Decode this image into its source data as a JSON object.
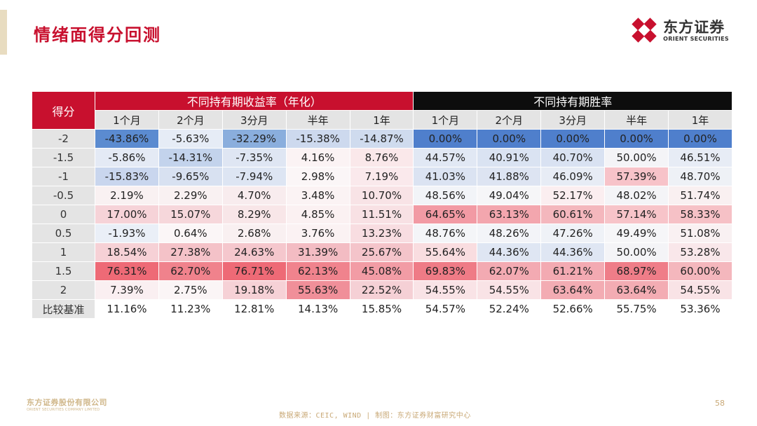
{
  "title": "情绪面得分回测",
  "logo": {
    "cn": "东方证券",
    "en": "ORIENT SECURITIES"
  },
  "table": {
    "score_header": "得分",
    "group_return": "不同持有期收益率（年化）",
    "group_winrate": "不同持有期胜率",
    "return_periods": [
      "1个月",
      "2个月",
      "3分月",
      "半年",
      "1年"
    ],
    "winrate_periods": [
      "1个月",
      "2个月",
      "3分月",
      "半年",
      "1年"
    ],
    "rows": [
      {
        "score": "-2",
        "values": [
          "-43.86%",
          "-5.63%",
          "-32.29%",
          "-15.38%",
          "-14.87%",
          "0.00%",
          "0.00%",
          "0.00%",
          "0.00%",
          "0.00%"
        ]
      },
      {
        "score": "-1.5",
        "values": [
          "-5.86%",
          "-14.31%",
          "-7.35%",
          "4.16%",
          "8.76%",
          "44.57%",
          "40.91%",
          "40.70%",
          "50.00%",
          "46.51%"
        ]
      },
      {
        "score": "-1",
        "values": [
          "-15.83%",
          "-9.65%",
          "-7.94%",
          "2.98%",
          "7.19%",
          "41.03%",
          "41.88%",
          "46.09%",
          "57.39%",
          "48.70%"
        ]
      },
      {
        "score": "-0.5",
        "values": [
          "2.19%",
          "2.29%",
          "4.70%",
          "3.48%",
          "10.70%",
          "48.56%",
          "49.04%",
          "52.17%",
          "48.02%",
          "51.74%"
        ]
      },
      {
        "score": "0",
        "values": [
          "17.00%",
          "15.07%",
          "8.29%",
          "4.85%",
          "11.51%",
          "64.65%",
          "63.13%",
          "60.61%",
          "57.14%",
          "58.33%"
        ]
      },
      {
        "score": "0.5",
        "values": [
          "-1.93%",
          "0.64%",
          "2.68%",
          "3.76%",
          "13.23%",
          "48.76%",
          "48.26%",
          "47.26%",
          "49.49%",
          "51.08%"
        ]
      },
      {
        "score": "1",
        "values": [
          "18.54%",
          "27.38%",
          "24.63%",
          "31.39%",
          "25.67%",
          "55.64%",
          "44.36%",
          "44.36%",
          "50.00%",
          "53.28%"
        ]
      },
      {
        "score": "1.5",
        "values": [
          "76.31%",
          "62.70%",
          "76.71%",
          "62.13%",
          "45.08%",
          "69.83%",
          "62.07%",
          "61.21%",
          "68.97%",
          "60.00%"
        ]
      },
      {
        "score": "2",
        "values": [
          "7.39%",
          "2.75%",
          "19.18%",
          "55.63%",
          "22.52%",
          "54.55%",
          "54.55%",
          "63.64%",
          "63.64%",
          "54.55%"
        ]
      },
      {
        "score": "比较基准",
        "values": [
          "11.16%",
          "11.23%",
          "12.81%",
          "14.13%",
          "15.85%",
          "54.57%",
          "52.24%",
          "52.66%",
          "55.75%",
          "53.36%"
        ]
      }
    ],
    "cell_colors": [
      [
        "#5b8bd0",
        "#e6ecf6",
        "#8aaedd",
        "#cdd9ee",
        "#cfdbee",
        "#4f7fcc",
        "#4f7fcc",
        "#4f7fcc",
        "#4f7fcc",
        "#4f7fcc"
      ],
      [
        "#e4eaf5",
        "#c3d3ec",
        "#dfe6f3",
        "#fbf3f4",
        "#fae8ea",
        "#e1e8f4",
        "#dae3f2",
        "#d9e2f2",
        "#f4f4f7",
        "#e7ecf5"
      ],
      [
        "#c9d6ee",
        "#d8e1f1",
        "#dde5f3",
        "#fbf6f7",
        "#fae9ec",
        "#dbe3f2",
        "#dde4f2",
        "#e7ecf5",
        "#f7c3c9",
        "#eef1f6"
      ],
      [
        "#f9f1f2",
        "#f9f1f2",
        "#f8ecee",
        "#fbf3f4",
        "#f8e3e6",
        "#f2f4f8",
        "#f6f6f8",
        "#fbeef0",
        "#f4f4f7",
        "#f9f0f1"
      ],
      [
        "#f6d3d8",
        "#f6d7db",
        "#f8e6e8",
        "#fbf1f2",
        "#f8e1e4",
        "#f29aa4",
        "#f3a6ae",
        "#f4b7bd",
        "#f7c4c9",
        "#f6c1c6"
      ],
      [
        "#eaeff7",
        "#fbf6f7",
        "#f9f0f1",
        "#fbf2f3",
        "#f8dde1",
        "#f4f5f8",
        "#f3f4f8",
        "#eff2f7",
        "#f6f6f8",
        "#f9f1f2"
      ],
      [
        "#f6d1d6",
        "#f4c2c8",
        "#f5c7cd",
        "#f3bcc3",
        "#f4c4ca",
        "#f9dde0",
        "#dfe6f3",
        "#dfe6f3",
        "#f4f4f7",
        "#f9e7ea"
      ],
      [
        "#ee6a76",
        "#f0828c",
        "#ee6a76",
        "#f0838d",
        "#f29ca5",
        "#ef7b86",
        "#f3aab2",
        "#f3aab2",
        "#ef7d88",
        "#f4b7bd"
      ],
      [
        "#faeff1",
        "#fbf5f6",
        "#f6d1d6",
        "#f08f99",
        "#f5d0d5",
        "#f9e3e6",
        "#f9e3e6",
        "#f3acb3",
        "#f3acb3",
        "#f9e3e6"
      ],
      [
        "#ffffff",
        "#ffffff",
        "#ffffff",
        "#ffffff",
        "#ffffff",
        "#ffffff",
        "#ffffff",
        "#ffffff",
        "#ffffff",
        "#ffffff"
      ]
    ]
  },
  "footer": {
    "company_cn": "东方证券股份有限公司",
    "company_en": "ORIENT SECURITIES COMPANY LIMITED",
    "source": "数据来源：CEIC, WIND  | 制图：东方证券财富研究中心",
    "page": "58"
  },
  "colors": {
    "brand_red": "#c8102e",
    "black": "#0d0d0d",
    "gold": "#c9a977"
  }
}
